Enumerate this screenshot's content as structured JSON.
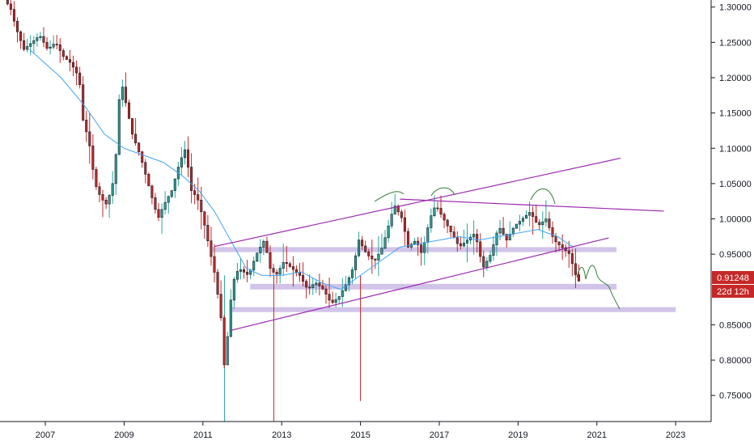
{
  "chart_data": {
    "type": "candlestick",
    "title": "",
    "xlabel": "",
    "ylabel": "",
    "ylim": [
      0.713,
      1.31
    ],
    "xlim": [
      2005.85,
      2023.9
    ],
    "y_ticks": [
      {
        "value": 1.3,
        "label": "1.30000"
      },
      {
        "value": 1.25,
        "label": "1.25000"
      },
      {
        "value": 1.2,
        "label": "1.20000"
      },
      {
        "value": 1.15,
        "label": "1.15000"
      },
      {
        "value": 1.1,
        "label": "1.10000"
      },
      {
        "value": 1.05,
        "label": "1.05000"
      },
      {
        "value": 1.0,
        "label": "1.00000"
      },
      {
        "value": 0.95,
        "label": "0.95000"
      },
      {
        "value": 0.85,
        "label": "0.85000"
      },
      {
        "value": 0.8,
        "label": "0.80000"
      },
      {
        "value": 0.75,
        "label": "0.75000"
      }
    ],
    "x_ticks": [
      {
        "value": 2007,
        "label": "2007"
      },
      {
        "value": 2009,
        "label": "2009"
      },
      {
        "value": 2011,
        "label": "2011"
      },
      {
        "value": 2013,
        "label": "2013"
      },
      {
        "value": 2015,
        "label": "2015"
      },
      {
        "value": 2017,
        "label": "2017"
      },
      {
        "value": 2019,
        "label": "2019"
      },
      {
        "value": 2021,
        "label": "2021"
      },
      {
        "value": 2023,
        "label": "2023"
      }
    ],
    "price_path": [
      [
        2006.0,
        1.31
      ],
      [
        2006.15,
        1.3
      ],
      [
        2006.3,
        1.27
      ],
      [
        2006.5,
        1.24
      ],
      [
        2006.7,
        1.25
      ],
      [
        2006.9,
        1.26
      ],
      [
        2007.1,
        1.24
      ],
      [
        2007.3,
        1.25
      ],
      [
        2007.5,
        1.23
      ],
      [
        2007.7,
        1.22
      ],
      [
        2007.9,
        1.2
      ],
      [
        2008.0,
        1.14
      ],
      [
        2008.15,
        1.11
      ],
      [
        2008.3,
        1.05
      ],
      [
        2008.45,
        1.03
      ],
      [
        2008.6,
        1.02
      ],
      [
        2008.8,
        1.06
      ],
      [
        2008.95,
        1.2
      ],
      [
        2009.1,
        1.16
      ],
      [
        2009.25,
        1.12
      ],
      [
        2009.45,
        1.09
      ],
      [
        2009.6,
        1.06
      ],
      [
        2009.75,
        1.03
      ],
      [
        2009.9,
        1.0
      ],
      [
        2010.05,
        1.02
      ],
      [
        2010.25,
        1.04
      ],
      [
        2010.45,
        1.08
      ],
      [
        2010.6,
        1.1
      ],
      [
        2010.75,
        1.04
      ],
      [
        2010.9,
        1.03
      ],
      [
        2011.05,
        1.0
      ],
      [
        2011.2,
        0.96
      ],
      [
        2011.35,
        0.92
      ],
      [
        2011.5,
        0.86
      ],
      [
        2011.6,
        0.78
      ],
      [
        2011.7,
        0.86
      ],
      [
        2011.8,
        0.91
      ],
      [
        2011.95,
        0.93
      ],
      [
        2012.2,
        0.92
      ],
      [
        2012.4,
        0.95
      ],
      [
        2012.6,
        0.97
      ],
      [
        2012.75,
        0.93
      ],
      [
        2012.9,
        0.92
      ],
      [
        2013.1,
        0.94
      ],
      [
        2013.3,
        0.93
      ],
      [
        2013.5,
        0.92
      ],
      [
        2013.7,
        0.9
      ],
      [
        2013.9,
        0.91
      ],
      [
        2014.1,
        0.9
      ],
      [
        2014.3,
        0.88
      ],
      [
        2014.5,
        0.89
      ],
      [
        2014.7,
        0.91
      ],
      [
        2014.85,
        0.93
      ],
      [
        2015.0,
        0.97
      ],
      [
        2015.2,
        0.95
      ],
      [
        2015.4,
        0.94
      ],
      [
        2015.6,
        0.96
      ],
      [
        2015.75,
        0.99
      ],
      [
        2015.9,
        1.02
      ],
      [
        2016.1,
        1.0
      ],
      [
        2016.25,
        0.96
      ],
      [
        2016.45,
        0.97
      ],
      [
        2016.6,
        0.95
      ],
      [
        2016.8,
        1.0
      ],
      [
        2016.95,
        1.02
      ],
      [
        2017.15,
        1.0
      ],
      [
        2017.35,
        0.98
      ],
      [
        2017.55,
        0.96
      ],
      [
        2017.75,
        0.97
      ],
      [
        2017.95,
        0.98
      ],
      [
        2018.15,
        0.93
      ],
      [
        2018.35,
        0.95
      ],
      [
        2018.55,
        0.99
      ],
      [
        2018.75,
        0.97
      ],
      [
        2018.95,
        0.99
      ],
      [
        2019.15,
        1.0
      ],
      [
        2019.35,
        1.01
      ],
      [
        2019.55,
        0.99
      ],
      [
        2019.75,
        1.0
      ],
      [
        2019.95,
        0.97
      ],
      [
        2020.15,
        0.96
      ],
      [
        2020.35,
        0.95
      ],
      [
        2020.45,
        0.93
      ],
      [
        2020.55,
        0.912
      ]
    ],
    "spikes": [
      {
        "x": 2012.8,
        "low": 0.713,
        "color": "#c62828"
      },
      {
        "x": 2015.0,
        "low": 0.742,
        "color": "#c62828"
      },
      {
        "x": 2011.55,
        "low": 0.713,
        "color": "#26a69a"
      }
    ],
    "moving_average": [
      [
        2006.6,
        1.24
      ],
      [
        2007.4,
        1.2
      ],
      [
        2008.0,
        1.16
      ],
      [
        2008.5,
        1.12
      ],
      [
        2009.0,
        1.1
      ],
      [
        2009.5,
        1.09
      ],
      [
        2010.0,
        1.08
      ],
      [
        2010.5,
        1.06
      ],
      [
        2010.9,
        1.04
      ],
      [
        2011.3,
        1.01
      ],
      [
        2011.7,
        0.97
      ],
      [
        2012.1,
        0.93
      ],
      [
        2012.5,
        0.92
      ],
      [
        2013.0,
        0.92
      ],
      [
        2013.5,
        0.925
      ],
      [
        2014.0,
        0.91
      ],
      [
        2014.5,
        0.9
      ],
      [
        2015.0,
        0.92
      ],
      [
        2015.5,
        0.94
      ],
      [
        2016.0,
        0.96
      ],
      [
        2016.5,
        0.965
      ],
      [
        2017.0,
        0.97
      ],
      [
        2017.5,
        0.975
      ],
      [
        2018.0,
        0.97
      ],
      [
        2018.5,
        0.975
      ],
      [
        2019.0,
        0.98
      ],
      [
        2019.5,
        0.985
      ],
      [
        2020.0,
        0.975
      ],
      [
        2020.4,
        0.96
      ]
    ],
    "trend_lines": [
      {
        "from": [
          2011.3,
          0.961
        ],
        "to": [
          2021.6,
          1.086
        ],
        "color": "#9c27b0"
      },
      {
        "from": [
          2011.7,
          0.842
        ],
        "to": [
          2021.3,
          0.973
        ],
        "color": "#9c27b0"
      },
      {
        "from": [
          2016.0,
          1.028
        ],
        "to": [
          2022.7,
          1.011
        ],
        "color": "#9c27b0"
      }
    ],
    "zones": [
      {
        "from": 2019.85,
        "to": 2020.5,
        "y_top": 0.96,
        "y_bottom": 0.953,
        "color": "#d1c4e9"
      },
      {
        "from": 2011.25,
        "to": 2021.5,
        "y_top": 0.96,
        "y_bottom": 0.953,
        "color": "#d1c4e9"
      },
      {
        "from": 2012.2,
        "to": 2021.5,
        "y_top": 0.908,
        "y_bottom": 0.9,
        "color": "#d1c4e9"
      },
      {
        "from": 2011.7,
        "to": 2023.0,
        "y_top": 0.875,
        "y_bottom": 0.868,
        "color": "#d1c4e9"
      }
    ],
    "current_price": {
      "value": 0.91248,
      "label": "0.91248",
      "countdown": "22d 12h",
      "color": "#c62828"
    },
    "colors": {
      "up": "#26a69a",
      "down": "#c62828",
      "wick": "#131722",
      "ma": "#42a5f5",
      "projection": "#2e7d32",
      "axis": "#131722"
    }
  }
}
